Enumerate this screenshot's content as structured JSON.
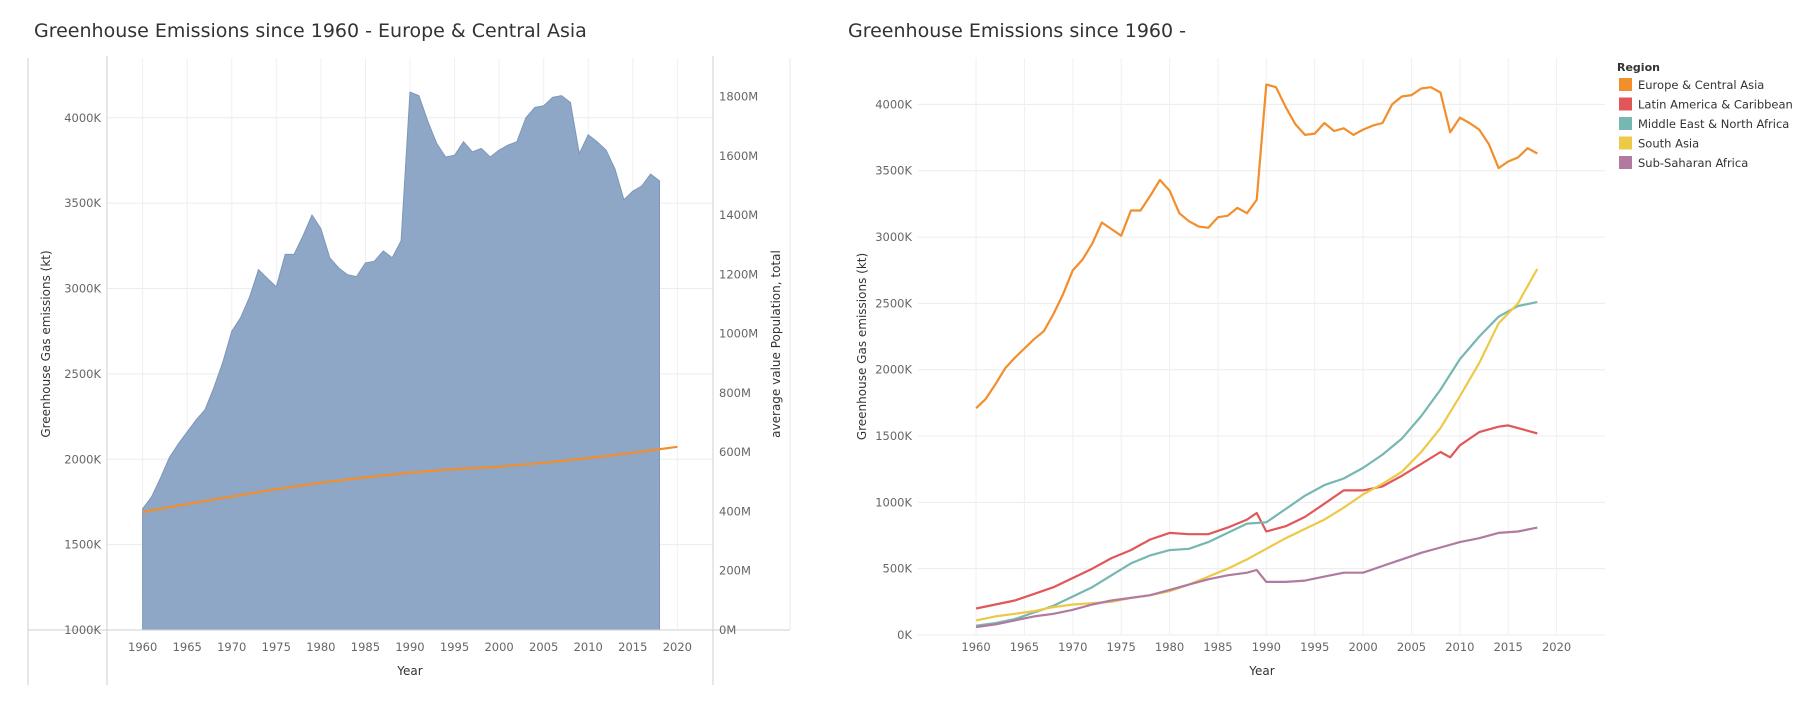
{
  "chart_data": [
    {
      "type": "area",
      "title": "Greenhouse Emissions since 1960 - Europe & Central Asia",
      "xlabel": "Year",
      "ylabel": "Greenhouse Gas emissions (kt)",
      "y2label": "average value Population, total",
      "xlim": [
        1956,
        2024
      ],
      "ylim": [
        1000,
        4350
      ],
      "y2lim": [
        0,
        1930
      ],
      "x_ticks": [
        1960,
        1965,
        1970,
        1975,
        1980,
        1985,
        1990,
        1995,
        2000,
        2005,
        2010,
        2015,
        2020
      ],
      "y_ticks": [
        1000,
        1500,
        2000,
        2500,
        3000,
        3500,
        4000
      ],
      "y_tick_labels": [
        "1000K",
        "1500K",
        "2000K",
        "2500K",
        "3000K",
        "3500K",
        "4000K"
      ],
      "y2_ticks": [
        0,
        200,
        400,
        600,
        800,
        1000,
        1200,
        1400,
        1600,
        1800
      ],
      "y2_tick_labels": [
        "0M",
        "200M",
        "400M",
        "600M",
        "800M",
        "1000M",
        "1200M",
        "1400M",
        "1600M",
        "1800M"
      ],
      "grid": true,
      "series": [
        {
          "name": "Greenhouse Gas emissions (kt)",
          "type": "area",
          "color": "#8fa7c6",
          "axis": "left",
          "x": [
            1960,
            1961,
            1962,
            1963,
            1964,
            1965,
            1966,
            1967,
            1968,
            1969,
            1970,
            1971,
            1972,
            1973,
            1974,
            1975,
            1976,
            1977,
            1978,
            1979,
            1980,
            1981,
            1982,
            1983,
            1984,
            1985,
            1986,
            1987,
            1988,
            1989,
            1990,
            1991,
            1992,
            1993,
            1994,
            1995,
            1996,
            1997,
            1998,
            1999,
            2000,
            2001,
            2002,
            2003,
            2004,
            2005,
            2006,
            2007,
            2008,
            2009,
            2010,
            2011,
            2012,
            2013,
            2014,
            2015,
            2016,
            2017,
            2018
          ],
          "values": [
            1710,
            1780,
            1890,
            2010,
            2090,
            2160,
            2230,
            2290,
            2420,
            2570,
            2750,
            2830,
            2950,
            3110,
            3060,
            3010,
            3200,
            3200,
            3310,
            3430,
            3350,
            3180,
            3120,
            3080,
            3070,
            3150,
            3160,
            3220,
            3180,
            3280,
            4150,
            4130,
            3980,
            3850,
            3770,
            3780,
            3860,
            3800,
            3820,
            3770,
            3810,
            3840,
            3860,
            4000,
            4060,
            4070,
            4120,
            4130,
            4090,
            3790,
            3900,
            3860,
            3810,
            3700,
            3520,
            3570,
            3600,
            3670,
            3630
          ]
        },
        {
          "name": "average value Population, total",
          "type": "line",
          "color": "#f28e2b",
          "axis": "right",
          "x": [
            1960,
            1965,
            1970,
            1975,
            1980,
            1985,
            1990,
            1995,
            2000,
            2005,
            2010,
            2015,
            2020
          ],
          "values": [
            398,
            425,
            450,
            475,
            497,
            515,
            531,
            543,
            551,
            564,
            580,
            598,
            618
          ]
        }
      ]
    },
    {
      "type": "line",
      "title": "Greenhouse Emissions since 1960 -",
      "xlabel": "Year",
      "ylabel": "Greenhouse Gas emissions (kt)",
      "xlim": [
        1954,
        2025
      ],
      "ylim": [
        0,
        4350
      ],
      "x_ticks": [
        1960,
        1965,
        1970,
        1975,
        1980,
        1985,
        1990,
        1995,
        2000,
        2005,
        2010,
        2015,
        2020
      ],
      "y_ticks": [
        0,
        500,
        1000,
        1500,
        2000,
        2500,
        3000,
        3500,
        4000
      ],
      "y_tick_labels": [
        "0K",
        "500K",
        "1000K",
        "1500K",
        "2000K",
        "2500K",
        "3000K",
        "3500K",
        "4000K"
      ],
      "grid": true,
      "legend": {
        "title": "Region",
        "position": "top-right"
      },
      "series": [
        {
          "name": "Europe & Central Asia",
          "color": "#f28e2b",
          "x": [
            1960,
            1961,
            1962,
            1963,
            1964,
            1965,
            1966,
            1967,
            1968,
            1969,
            1970,
            1971,
            1972,
            1973,
            1974,
            1975,
            1976,
            1977,
            1978,
            1979,
            1980,
            1981,
            1982,
            1983,
            1984,
            1985,
            1986,
            1987,
            1988,
            1989,
            1990,
            1991,
            1992,
            1993,
            1994,
            1995,
            1996,
            1997,
            1998,
            1999,
            2000,
            2001,
            2002,
            2003,
            2004,
            2005,
            2006,
            2007,
            2008,
            2009,
            2010,
            2011,
            2012,
            2013,
            2014,
            2015,
            2016,
            2017,
            2018
          ],
          "values": [
            1710,
            1780,
            1890,
            2010,
            2090,
            2160,
            2230,
            2290,
            2420,
            2570,
            2750,
            2830,
            2950,
            3110,
            3060,
            3010,
            3200,
            3200,
            3310,
            3430,
            3350,
            3180,
            3120,
            3080,
            3070,
            3150,
            3160,
            3220,
            3180,
            3280,
            4150,
            4130,
            3980,
            3850,
            3770,
            3780,
            3860,
            3800,
            3820,
            3770,
            3810,
            3840,
            3860,
            4000,
            4060,
            4070,
            4120,
            4130,
            4090,
            3790,
            3900,
            3860,
            3810,
            3700,
            3520,
            3570,
            3600,
            3670,
            3630
          ]
        },
        {
          "name": "Latin America & Caribbean",
          "color": "#e15759",
          "x": [
            1960,
            1962,
            1964,
            1966,
            1968,
            1970,
            1972,
            1974,
            1976,
            1978,
            1980,
            1982,
            1984,
            1986,
            1988,
            1989,
            1990,
            1992,
            1994,
            1996,
            1998,
            2000,
            2002,
            2004,
            2006,
            2008,
            2009,
            2010,
            2012,
            2014,
            2015,
            2016,
            2018
          ],
          "values": [
            200,
            230,
            260,
            310,
            360,
            430,
            500,
            580,
            640,
            720,
            770,
            760,
            760,
            810,
            870,
            920,
            780,
            820,
            890,
            990,
            1090,
            1090,
            1120,
            1200,
            1290,
            1380,
            1340,
            1430,
            1530,
            1570,
            1580,
            1560,
            1520
          ]
        },
        {
          "name": "Middle East & North Africa",
          "color": "#76b7b2",
          "x": [
            1960,
            1962,
            1964,
            1966,
            1968,
            1970,
            1972,
            1974,
            1976,
            1978,
            1980,
            1982,
            1984,
            1986,
            1988,
            1990,
            1992,
            1994,
            1996,
            1998,
            2000,
            2002,
            2004,
            2006,
            2008,
            2010,
            2012,
            2014,
            2016,
            2018
          ],
          "values": [
            70,
            90,
            120,
            170,
            220,
            290,
            360,
            450,
            540,
            600,
            640,
            650,
            700,
            770,
            840,
            850,
            950,
            1050,
            1130,
            1180,
            1260,
            1360,
            1480,
            1650,
            1850,
            2080,
            2250,
            2400,
            2480,
            2510
          ]
        },
        {
          "name": "South Asia",
          "color": "#edc948",
          "x": [
            1960,
            1962,
            1964,
            1966,
            1968,
            1970,
            1972,
            1974,
            1976,
            1978,
            1980,
            1982,
            1984,
            1986,
            1988,
            1990,
            1992,
            1994,
            1996,
            1998,
            2000,
            2002,
            2004,
            2006,
            2008,
            2010,
            2012,
            2014,
            2016,
            2018
          ],
          "values": [
            110,
            140,
            160,
            180,
            210,
            230,
            240,
            250,
            280,
            300,
            330,
            380,
            440,
            500,
            570,
            650,
            730,
            800,
            870,
            960,
            1060,
            1140,
            1230,
            1380,
            1560,
            1800,
            2050,
            2350,
            2500,
            2760
          ]
        },
        {
          "name": "Sub-Saharan Africa",
          "color": "#b07aa1",
          "x": [
            1960,
            1962,
            1964,
            1966,
            1968,
            1970,
            1972,
            1974,
            1976,
            1978,
            1980,
            1982,
            1984,
            1986,
            1988,
            1989,
            1990,
            1992,
            1994,
            1996,
            1998,
            2000,
            2002,
            2004,
            2006,
            2008,
            2010,
            2012,
            2014,
            2016,
            2018
          ],
          "values": [
            60,
            80,
            110,
            140,
            160,
            190,
            230,
            260,
            280,
            300,
            340,
            380,
            420,
            450,
            470,
            490,
            400,
            400,
            410,
            440,
            470,
            470,
            520,
            570,
            620,
            660,
            700,
            730,
            770,
            780,
            810
          ]
        }
      ]
    }
  ]
}
